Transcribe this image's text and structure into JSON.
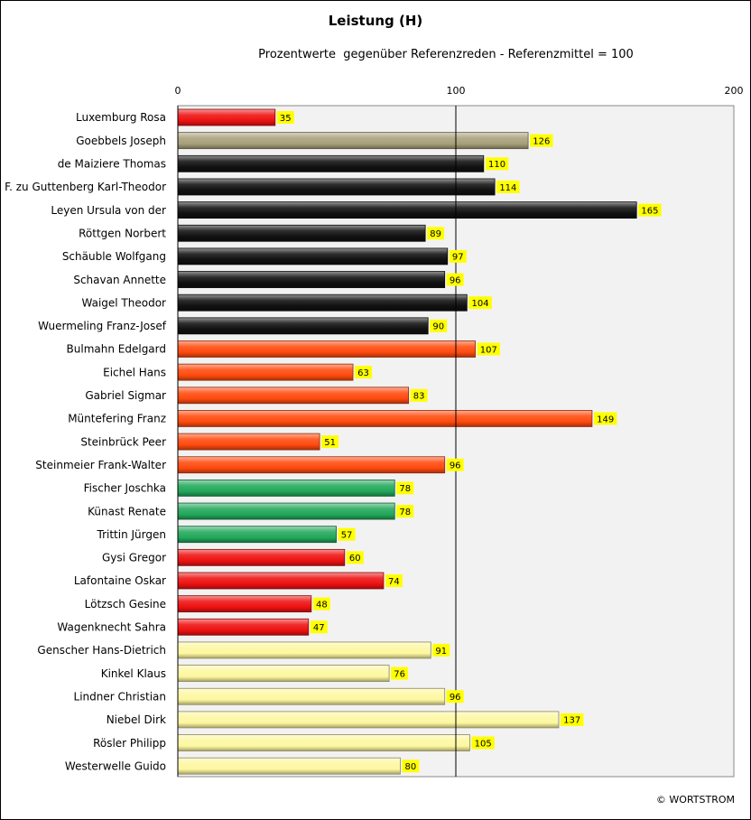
{
  "chart_data": {
    "type": "bar",
    "orientation": "horizontal",
    "title": "Leistung (H)",
    "subtitle": "Prozentwerte  gegenüber Referenzreden - Referenzmittel = 100",
    "xlabel": "",
    "ylabel": "",
    "xlim": [
      0,
      200
    ],
    "ticks": [
      0,
      100,
      200
    ],
    "reference_line": 100,
    "grid": false,
    "legend": "none",
    "copyright": "© WORTSTROM",
    "colors": {
      "cdu": "#111111",
      "spd": "#ff4a0e",
      "gruene": "#22a85a",
      "linke": "#ee1111",
      "fdp": "#fdf7a0",
      "other_red": "#ee1111",
      "gold": "#a8a07a",
      "label_bg": "#ffff00",
      "plot_bg": "#f2f2f2"
    },
    "categories": [
      "Luxemburg Rosa",
      "Goebbels Joseph",
      "de Maiziere Thomas",
      "F. zu Guttenberg Karl-Theodor",
      "Leyen Ursula von der",
      "Röttgen Norbert",
      "Schäuble Wolfgang",
      "Schavan Annette",
      "Waigel Theodor",
      "Wuermeling Franz-Josef",
      "Bulmahn Edelgard",
      "Eichel Hans",
      "Gabriel Sigmar",
      "Müntefering Franz",
      "Steinbrück Peer",
      "Steinmeier Frank-Walter",
      "Fischer Joschka",
      "Künast Renate",
      "Trittin Jürgen",
      "Gysi Gregor",
      "Lafontaine Oskar",
      "Lötzsch Gesine",
      "Wagenknecht Sahra",
      "Genscher Hans-Dietrich",
      "Kinkel Klaus",
      "Lindner Christian",
      "Niebel Dirk",
      "Rösler Philipp",
      "Westerwelle Guido"
    ],
    "values": [
      35,
      126,
      110,
      114,
      165,
      89,
      97,
      96,
      104,
      90,
      107,
      63,
      83,
      149,
      51,
      96,
      78,
      78,
      57,
      60,
      74,
      48,
      47,
      91,
      76,
      96,
      137,
      105,
      80
    ],
    "bar_colors": [
      "#ee1111",
      "#a8a07a",
      "#111111",
      "#111111",
      "#111111",
      "#111111",
      "#111111",
      "#111111",
      "#111111",
      "#111111",
      "#ff4a0e",
      "#ff4a0e",
      "#ff4a0e",
      "#ff4a0e",
      "#ff4a0e",
      "#ff4a0e",
      "#22a85a",
      "#22a85a",
      "#22a85a",
      "#ee1111",
      "#ee1111",
      "#ee1111",
      "#ee1111",
      "#fdf7a0",
      "#fdf7a0",
      "#fdf7a0",
      "#fdf7a0",
      "#fdf7a0",
      "#fdf7a0"
    ]
  }
}
